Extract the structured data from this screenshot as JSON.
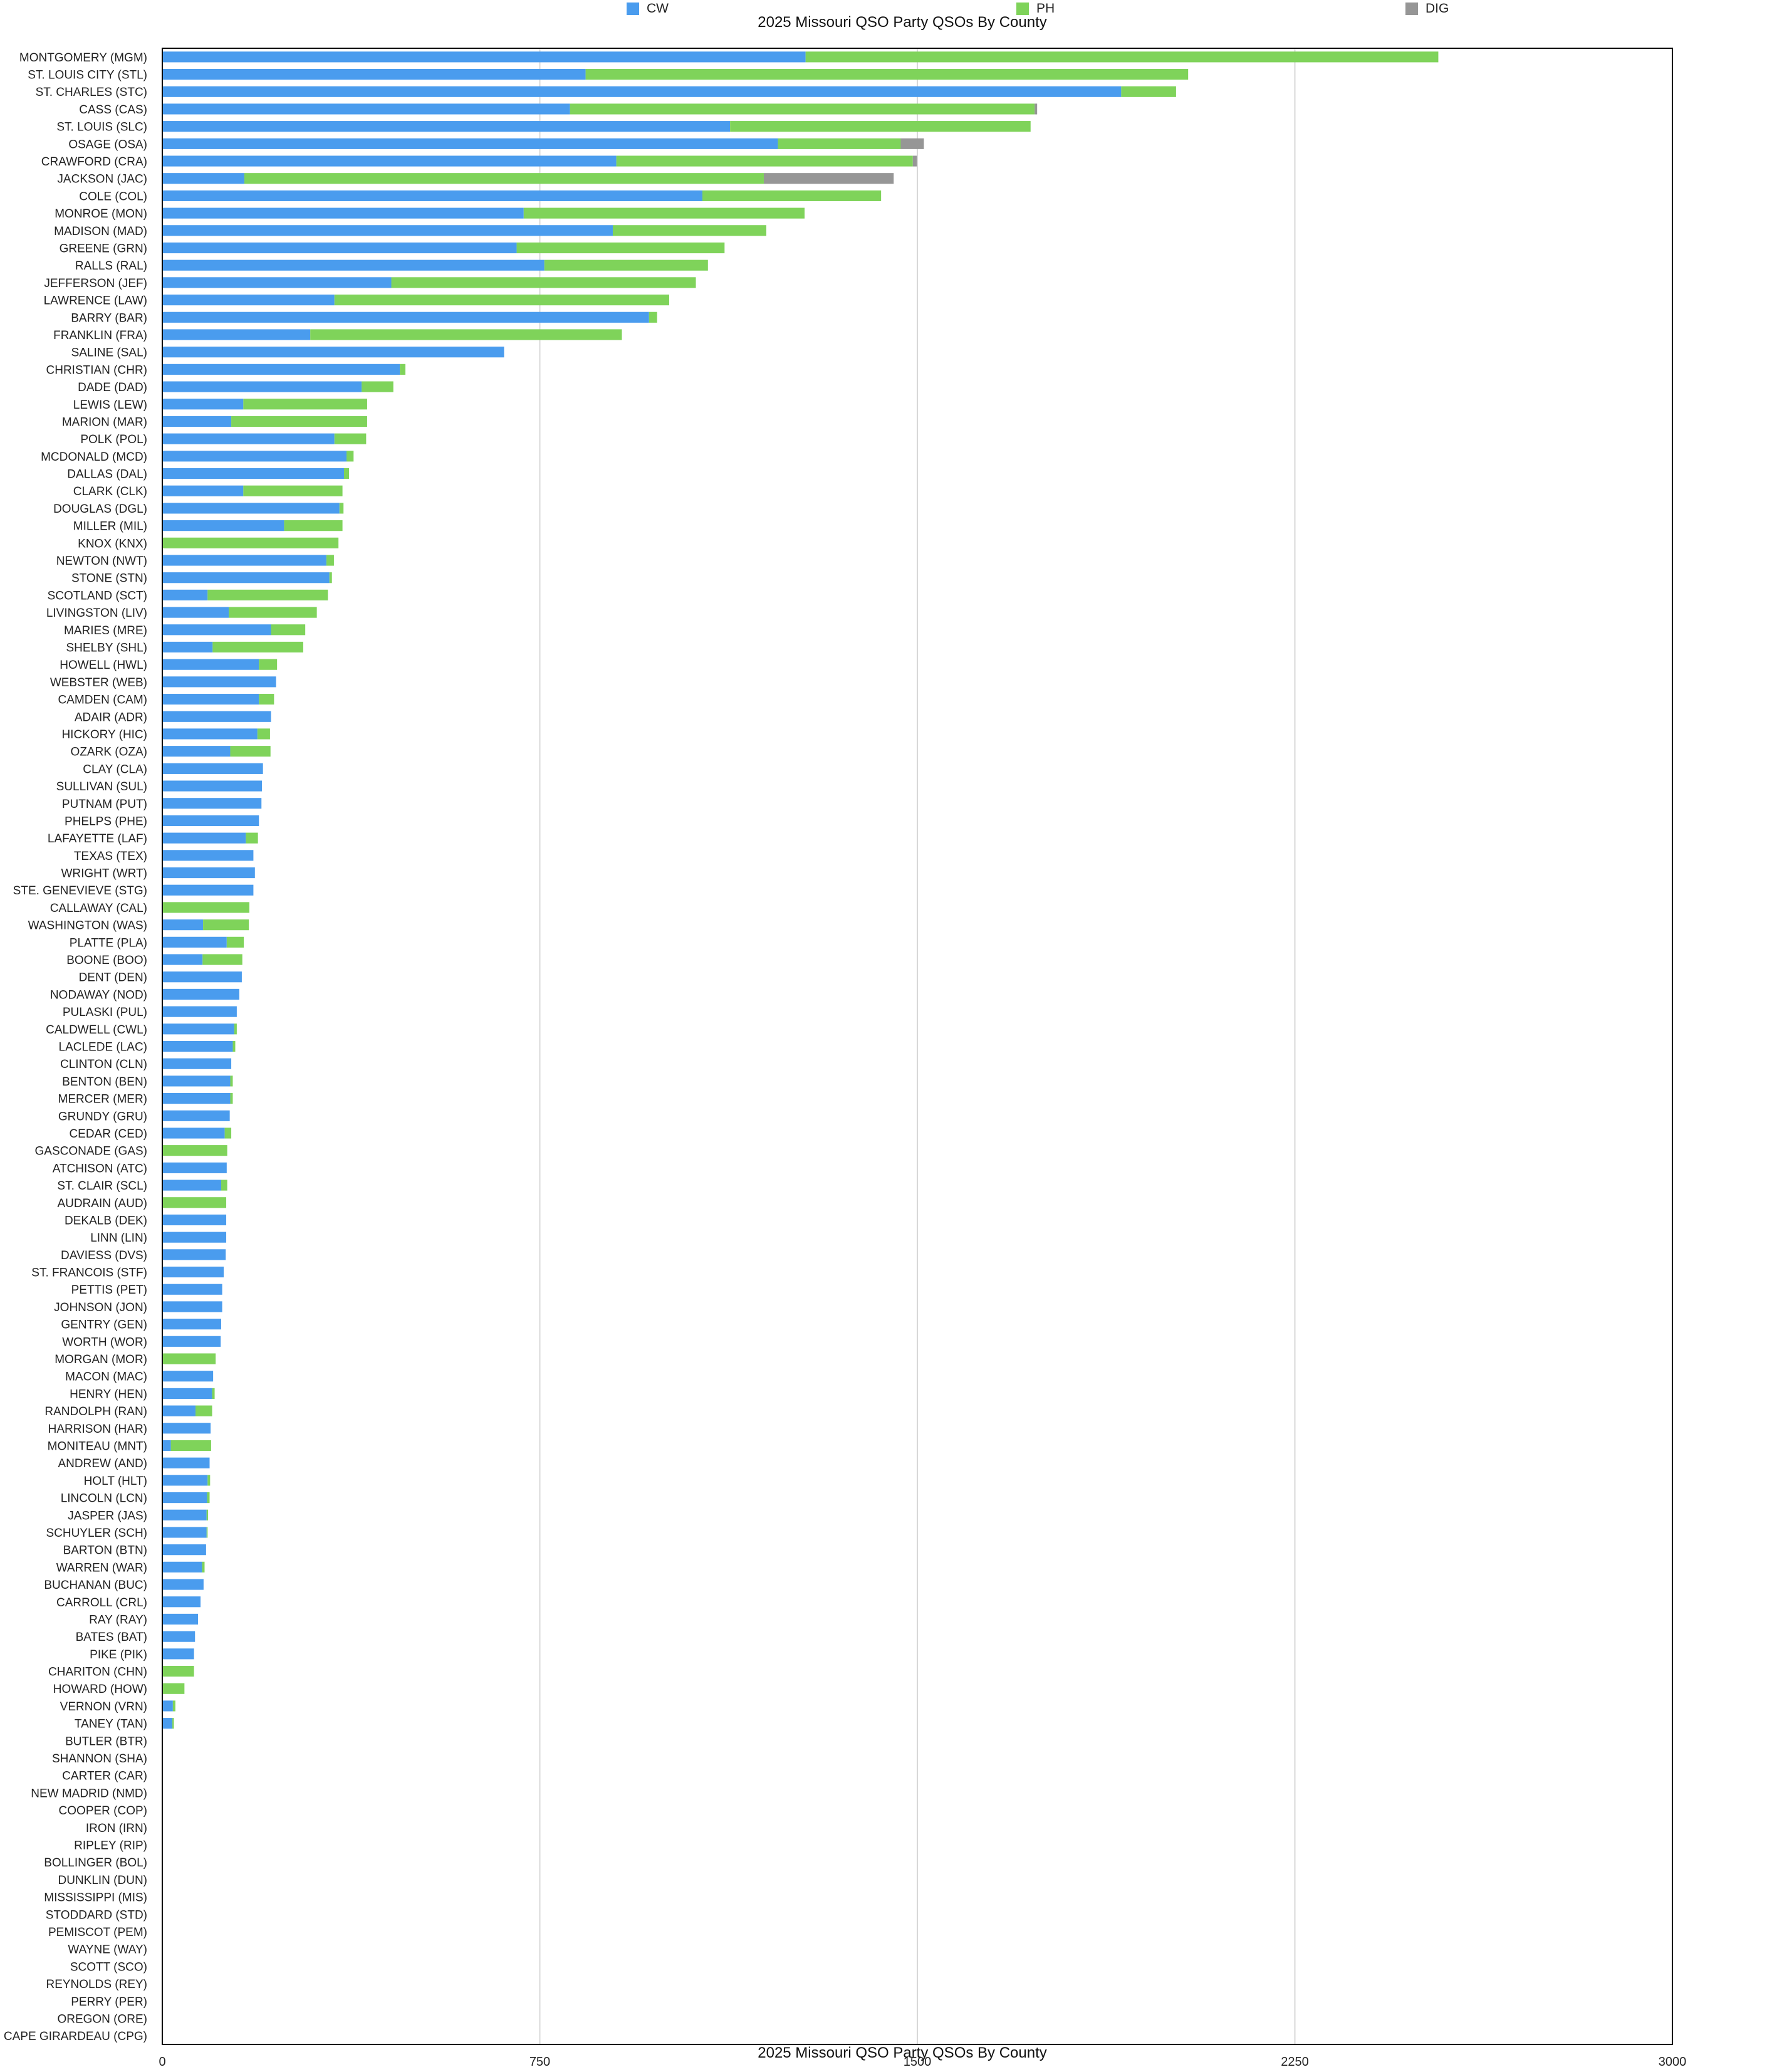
{
  "chart_data": {
    "type": "bar",
    "orientation": "horizontal",
    "stacked": true,
    "title": "2025 Missouri QSO Party QSOs By County",
    "xlabel": "2025 Missouri QSO Party QSOs By County",
    "ylabel": "",
    "xlim": [
      0,
      3000
    ],
    "xticks": [
      "0",
      "750",
      "1500",
      "2250",
      "3000"
    ],
    "grid": true,
    "legend_position": "top",
    "categories": [
      "MONTGOMERY (MGM)",
      "ST. LOUIS CITY (STL)",
      "ST. CHARLES (STC)",
      "CASS (CAS)",
      "ST. LOUIS (SLC)",
      "OSAGE (OSA)",
      "CRAWFORD (CRA)",
      "JACKSON (JAC)",
      "COLE (COL)",
      "MONROE (MON)",
      "MADISON (MAD)",
      "GREENE (GRN)",
      "RALLS (RAL)",
      "JEFFERSON (JEF)",
      "LAWRENCE (LAW)",
      "BARRY (BAR)",
      "FRANKLIN (FRA)",
      "SALINE (SAL)",
      "CHRISTIAN (CHR)",
      "DADE (DAD)",
      "LEWIS (LEW)",
      "MARION (MAR)",
      "POLK (POL)",
      "MCDONALD (MCD)",
      "DALLAS (DAL)",
      "CLARK (CLK)",
      "DOUGLAS (DGL)",
      "MILLER (MIL)",
      "KNOX (KNX)",
      "NEWTON (NWT)",
      "STONE (STN)",
      "SCOTLAND (SCT)",
      "LIVINGSTON (LIV)",
      "MARIES (MRE)",
      "SHELBY (SHL)",
      "HOWELL (HWL)",
      "WEBSTER (WEB)",
      "CAMDEN (CAM)",
      "ADAIR (ADR)",
      "HICKORY (HIC)",
      "OZARK (OZA)",
      "CLAY (CLA)",
      "SULLIVAN (SUL)",
      "PUTNAM (PUT)",
      "PHELPS (PHE)",
      "LAFAYETTE (LAF)",
      "TEXAS (TEX)",
      "WRIGHT (WRT)",
      "STE. GENEVIEVE (STG)",
      "CALLAWAY (CAL)",
      "WASHINGTON (WAS)",
      "PLATTE (PLA)",
      "BOONE (BOO)",
      "DENT (DEN)",
      "NODAWAY (NOD)",
      "PULASKI (PUL)",
      "CALDWELL (CWL)",
      "LACLEDE (LAC)",
      "CLINTON (CLN)",
      "BENTON (BEN)",
      "MERCER (MER)",
      "GRUNDY (GRU)",
      "CEDAR (CED)",
      "GASCONADE (GAS)",
      "ATCHISON (ATC)",
      "ST. CLAIR (SCL)",
      "AUDRAIN (AUD)",
      "DEKALB (DEK)",
      "LINN (LIN)",
      "DAVIESS (DVS)",
      "ST. FRANCOIS (STF)",
      "PETTIS (PET)",
      "JOHNSON (JON)",
      "GENTRY (GEN)",
      "WORTH (WOR)",
      "MORGAN (MOR)",
      "MACON (MAC)",
      "HENRY (HEN)",
      "RANDOLPH (RAN)",
      "HARRISON (HAR)",
      "MONITEAU (MNT)",
      "ANDREW (AND)",
      "HOLT (HLT)",
      "LINCOLN (LCN)",
      "JASPER (JAS)",
      "SCHUYLER (SCH)",
      "BARTON (BTN)",
      "WARREN (WAR)",
      "BUCHANAN (BUC)",
      "CARROLL (CRL)",
      "RAY (RAY)",
      "BATES (BAT)",
      "PIKE (PIK)",
      "CHARITON (CHN)",
      "HOWARD (HOW)",
      "VERNON (VRN)",
      "TANEY (TAN)",
      "BUTLER (BTR)",
      "SHANNON (SHA)",
      "CARTER (CAR)",
      "NEW MADRID (NMD)",
      "COOPER (COP)",
      "IRON (IRN)",
      "RIPLEY (RIP)",
      "BOLLINGER (BOL)",
      "DUNKLIN (DUN)",
      "MISSISSIPPI (MIS)",
      "STODDARD (STD)",
      "PEMISCOT (PEM)",
      "WAYNE (WAY)",
      "SCOTT (SCO)",
      "REYNOLDS (REY)",
      "PERRY (PER)",
      "OREGON (ORE)",
      "CAPE GIRARDEAU (CPG)"
    ],
    "series": [
      {
        "name": "CW",
        "color": "#4a9cee",
        "values": [
          1278,
          841,
          1905,
          810,
          1128,
          1223,
          902,
          163,
          1073,
          718,
          895,
          704,
          759,
          455,
          342,
          967,
          294,
          679,
          472,
          396,
          161,
          137,
          342,
          366,
          361,
          161,
          352,
          242,
          0,
          326,
          332,
          90,
          132,
          216,
          100,
          192,
          226,
          192,
          216,
          189,
          135,
          200,
          198,
          197,
          192,
          166,
          181,
          184,
          181,
          0,
          81,
          128,
          80,
          158,
          153,
          148,
          143,
          140,
          137,
          135,
          135,
          134,
          124,
          0,
          128,
          117,
          0,
          127,
          127,
          126,
          122,
          119,
          119,
          117,
          116,
          0,
          101,
          99,
          66,
          96,
          17,
          94,
          90,
          89,
          88,
          88,
          87,
          79,
          82,
          76,
          71,
          65,
          63,
          0,
          0,
          21,
          20,
          0,
          0,
          0,
          0,
          0,
          0,
          0,
          0,
          0,
          0,
          0,
          0,
          0,
          0,
          0,
          0,
          0,
          0
        ]
      },
      {
        "name": "PH",
        "color": "#7fd35a",
        "values": [
          1257,
          1197,
          109,
          923,
          597,
          244,
          589,
          1032,
          355,
          558,
          305,
          413,
          325,
          605,
          665,
          16,
          619,
          0,
          11,
          63,
          246,
          270,
          63,
          14,
          10,
          197,
          8,
          116,
          350,
          15,
          5,
          239,
          175,
          68,
          180,
          36,
          0,
          30,
          0,
          25,
          80,
          0,
          0,
          0,
          0,
          24,
          0,
          0,
          0,
          173,
          91,
          34,
          79,
          0,
          0,
          0,
          5,
          5,
          0,
          5,
          5,
          0,
          13,
          129,
          0,
          12,
          127,
          0,
          0,
          0,
          0,
          0,
          0,
          0,
          0,
          106,
          0,
          5,
          33,
          0,
          80,
          0,
          5,
          5,
          3,
          2,
          0,
          5,
          0,
          0,
          0,
          0,
          0,
          63,
          44,
          5,
          3,
          0,
          0,
          0,
          0,
          0,
          0,
          0,
          0,
          0,
          0,
          0,
          0,
          0,
          0,
          0,
          0,
          0,
          0
        ]
      },
      {
        "name": "DIG",
        "color": "#969696",
        "values": [
          0,
          0,
          0,
          5,
          0,
          46,
          8,
          258,
          0,
          0,
          0,
          0,
          0,
          0,
          0,
          0,
          0,
          0,
          0,
          0,
          0,
          0,
          0,
          0,
          0,
          0,
          0,
          0,
          0,
          0,
          0,
          0,
          0,
          0,
          0,
          0,
          0,
          0,
          0,
          0,
          0,
          0,
          0,
          0,
          0,
          0,
          0,
          0,
          0,
          0,
          0,
          0,
          0,
          0,
          0,
          0,
          0,
          0,
          0,
          0,
          0,
          0,
          0,
          0,
          0,
          0,
          0,
          0,
          0,
          0,
          0,
          0,
          0,
          0,
          0,
          0,
          0,
          0,
          0,
          0,
          0,
          0,
          0,
          0,
          0,
          0,
          0,
          0,
          0,
          0,
          0,
          0,
          0,
          0,
          0,
          0,
          0,
          0,
          0,
          0,
          0,
          0,
          0,
          0,
          0,
          0,
          0,
          0,
          0,
          0,
          0,
          0,
          0,
          0,
          0
        ]
      }
    ]
  }
}
